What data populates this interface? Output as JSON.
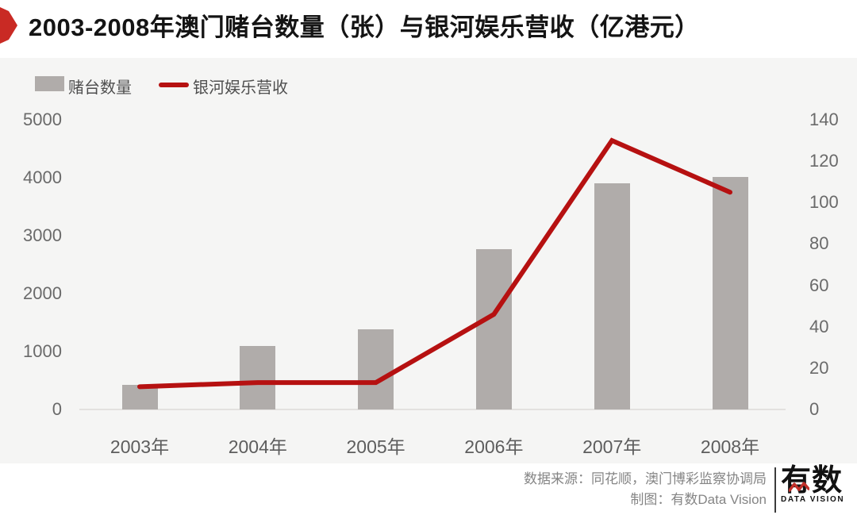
{
  "title": "2003-2008年澳门赌台数量（张）与银河娱乐营收（亿港元）",
  "legend": {
    "bars_label": "赌台数量",
    "line_label": "银河娱乐营收"
  },
  "footer": {
    "source_line": "数据来源：同花顺，澳门博彩监察协调局",
    "credit_line": "制图：有数Data Vision",
    "logo_text": "有数",
    "logo_subtext": "DATA VISION"
  },
  "colors": {
    "badge_red": "#c92a24",
    "line_red": "#b61111",
    "bar_gray": "#b0acaa",
    "panel_bg": "#f5f5f4"
  },
  "chart_data": {
    "type": "bar+line combo",
    "categories": [
      "2003年",
      "2004年",
      "2005年",
      "2006年",
      "2007年",
      "2008年"
    ],
    "series": [
      {
        "name": "赌台数量",
        "type": "bar",
        "axis": "left",
        "values": [
          424,
          1092,
          1388,
          2762,
          3900,
          4017
        ]
      },
      {
        "name": "银河娱乐营收",
        "type": "line",
        "axis": "right",
        "values": [
          11,
          13,
          13,
          46,
          130,
          105
        ]
      }
    ],
    "left_axis": {
      "min": 0,
      "max": 5000,
      "ticks": [
        0,
        1000,
        2000,
        3000,
        4000,
        5000
      ]
    },
    "right_axis": {
      "min": 0,
      "max": 140,
      "ticks": [
        0,
        20,
        40,
        60,
        80,
        100,
        120,
        140
      ]
    },
    "grid": false,
    "legend_position": "top-left"
  }
}
